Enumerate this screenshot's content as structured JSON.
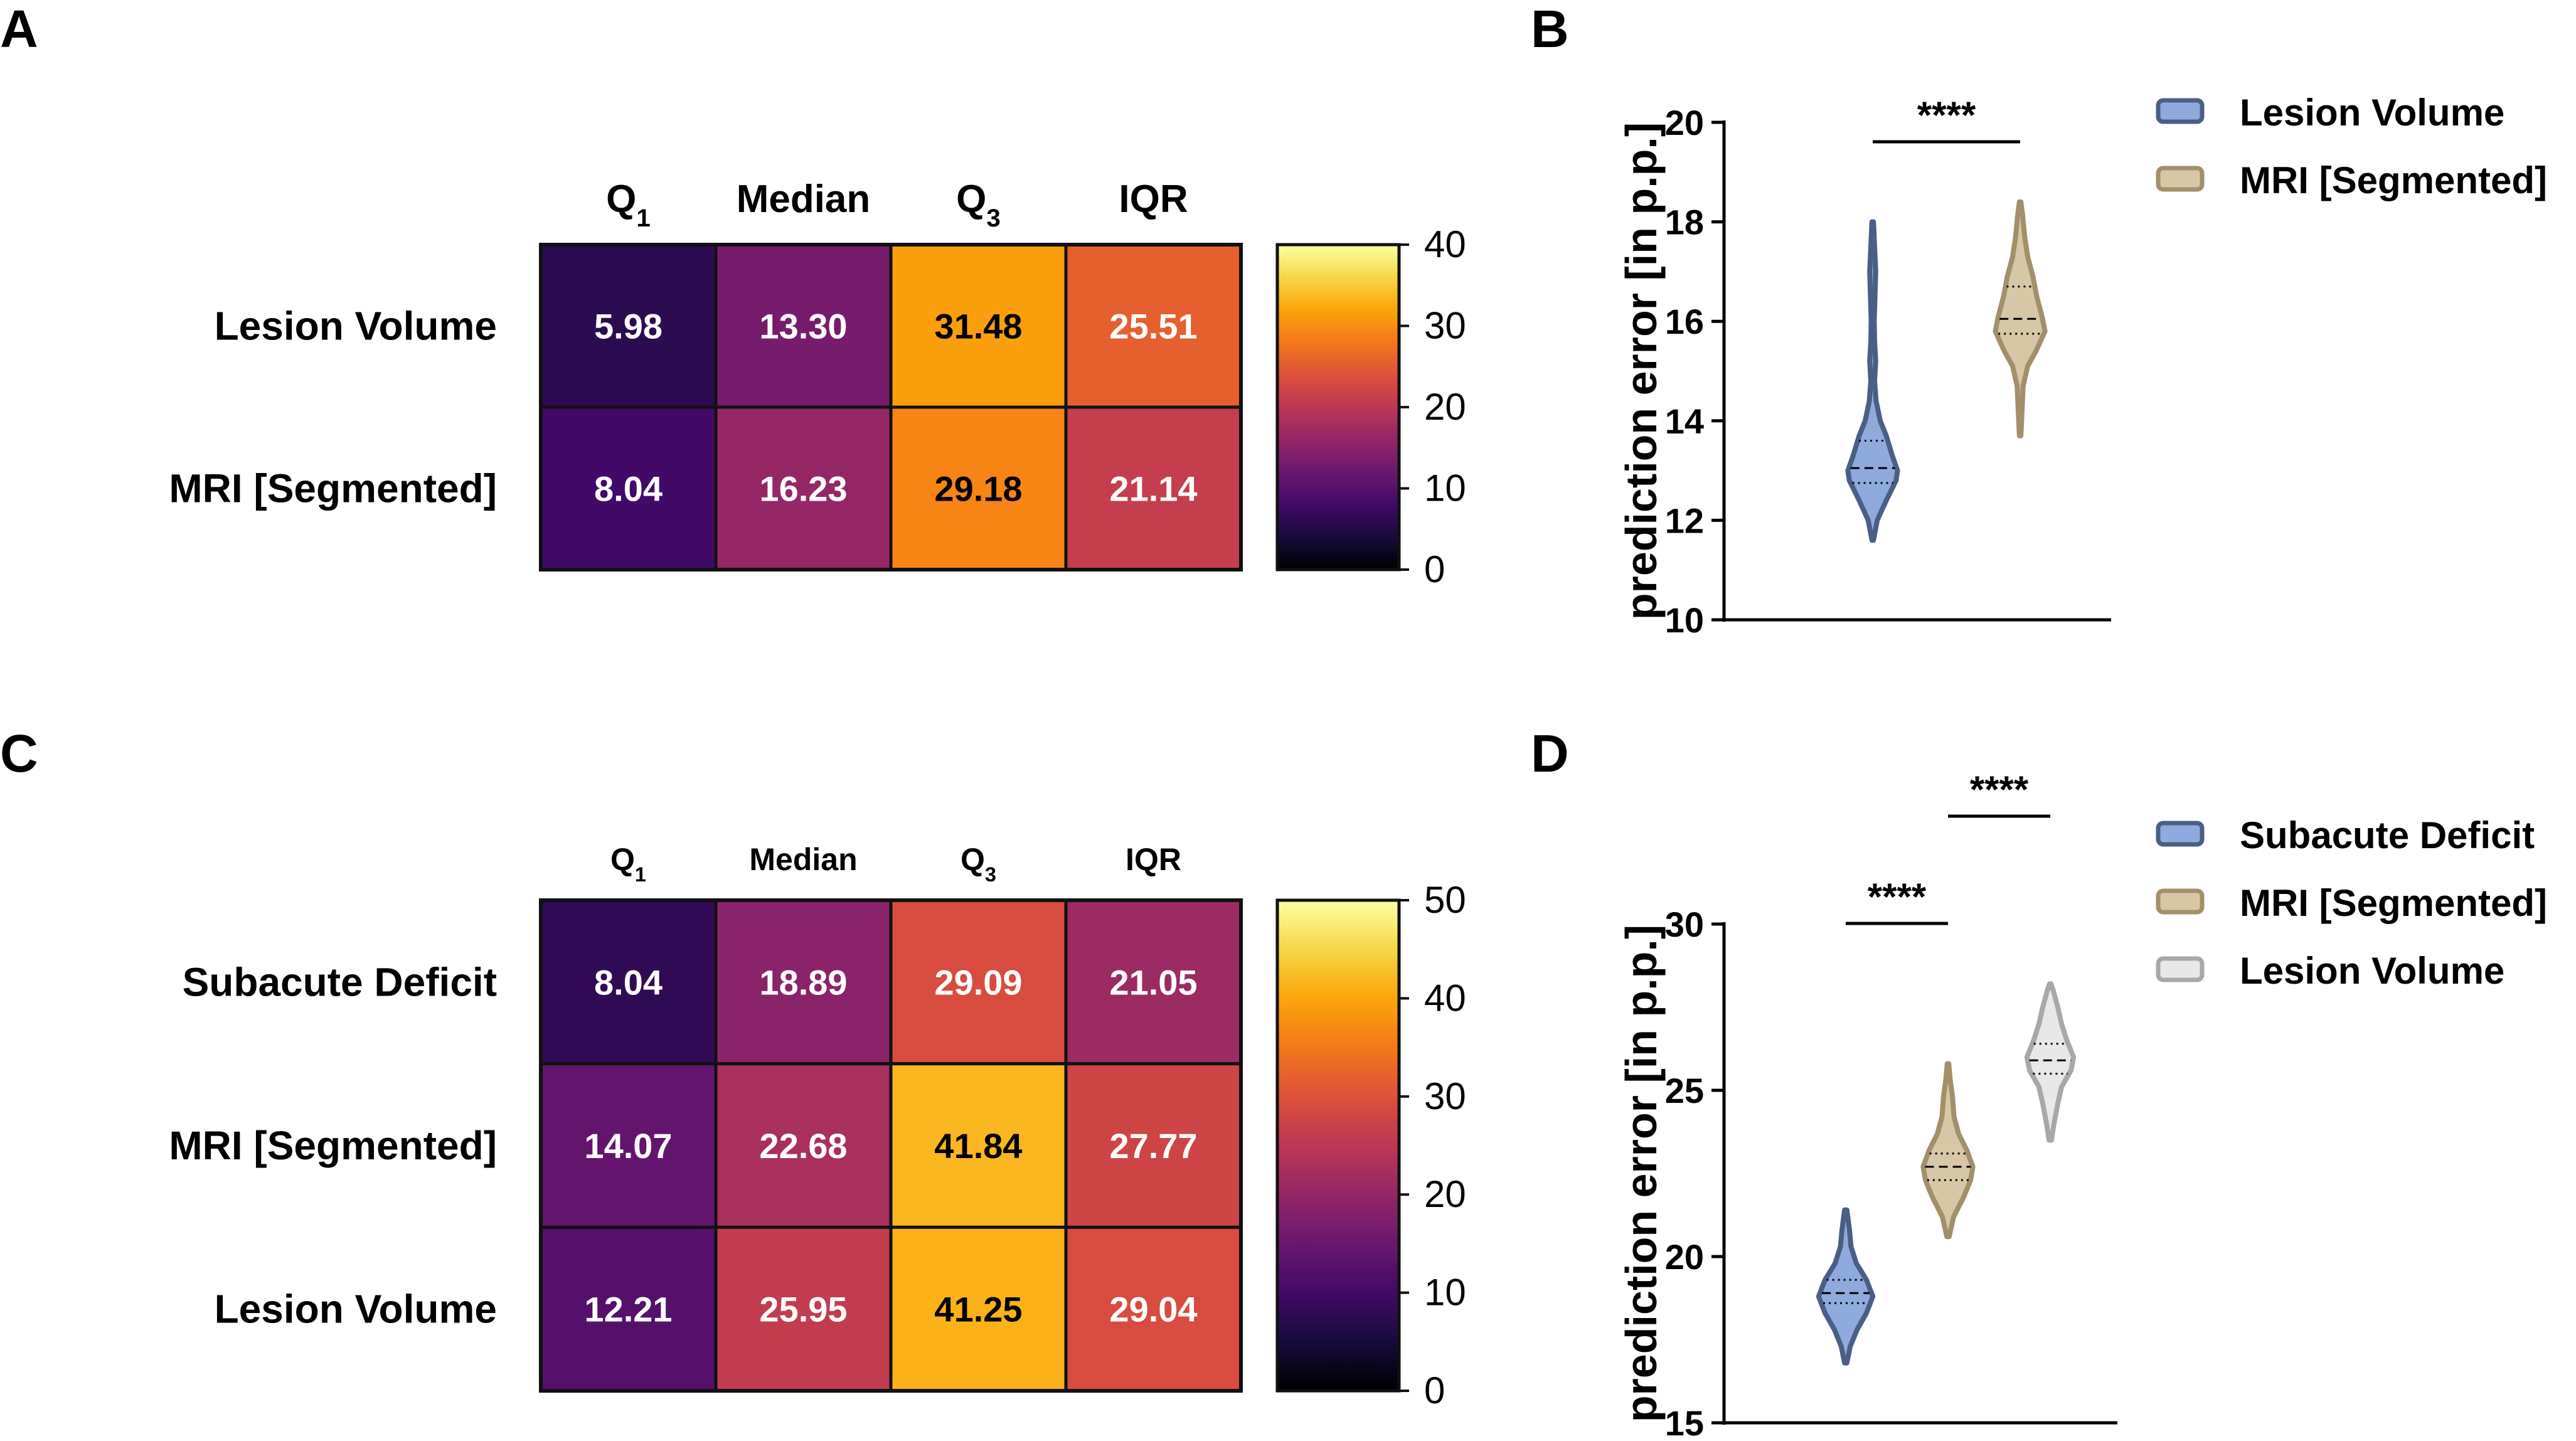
{
  "panels": {
    "A": "A",
    "B": "B",
    "C": "C",
    "D": "D"
  },
  "chart_data": [
    {
      "type": "heatmap",
      "panel": "A",
      "columns": [
        "Q1",
        "Median",
        "Q3",
        "IQR"
      ],
      "rows": [
        "Lesion Volume",
        "MRI [Segmented]"
      ],
      "values": [
        [
          5.98,
          13.3,
          31.48,
          25.51
        ],
        [
          8.04,
          16.23,
          29.18,
          21.14
        ]
      ],
      "value_labels": [
        [
          "5.98",
          "13.30",
          "31.48",
          "25.51"
        ],
        [
          "8.04",
          "16.23",
          "29.18",
          "21.14"
        ]
      ],
      "colorbar": {
        "range": [
          0,
          40
        ],
        "ticks": [
          "0",
          "10",
          "20",
          "30",
          "40"
        ],
        "colormap": "inferno"
      }
    },
    {
      "type": "violin",
      "panel": "B",
      "ylabel": "prediction error [in p.p.]",
      "ylim": [
        10,
        20
      ],
      "yticks": [
        "10",
        "12",
        "14",
        "16",
        "18",
        "20"
      ],
      "legend_position": "top-right",
      "series": [
        {
          "name": "Lesion Volume",
          "color": "#8faadc",
          "edge": "#4a5f86",
          "min": 11.6,
          "max": 18.0,
          "q1": 12.75,
          "median": 13.05,
          "q3": 13.6,
          "profile": [
            [
              11.6,
              0.02
            ],
            [
              12.0,
              0.12
            ],
            [
              12.4,
              0.36
            ],
            [
              12.8,
              0.62
            ],
            [
              13.0,
              0.66
            ],
            [
              13.3,
              0.52
            ],
            [
              13.7,
              0.36
            ],
            [
              14.0,
              0.2
            ],
            [
              14.4,
              0.09
            ],
            [
              14.8,
              0.05
            ],
            [
              15.2,
              0.08
            ],
            [
              15.6,
              0.05
            ],
            [
              16.0,
              0.04
            ],
            [
              16.5,
              0.06
            ],
            [
              17.0,
              0.08
            ],
            [
              17.5,
              0.05
            ],
            [
              18.0,
              0.02
            ]
          ]
        },
        {
          "name": "MRI [Segmented]",
          "color": "#d8c7a6",
          "edge": "#a38f6a",
          "min": 13.7,
          "max": 18.4,
          "q1": 15.75,
          "median": 16.05,
          "q3": 16.7,
          "profile": [
            [
              13.7,
              0.02
            ],
            [
              14.2,
              0.05
            ],
            [
              14.7,
              0.08
            ],
            [
              15.1,
              0.2
            ],
            [
              15.4,
              0.42
            ],
            [
              15.8,
              0.66
            ],
            [
              16.1,
              0.58
            ],
            [
              16.5,
              0.44
            ],
            [
              16.9,
              0.34
            ],
            [
              17.3,
              0.2
            ],
            [
              17.7,
              0.12
            ],
            [
              18.1,
              0.07
            ],
            [
              18.4,
              0.02
            ]
          ]
        }
      ],
      "significance": [
        {
          "pair": [
            0,
            1
          ],
          "label": "****"
        }
      ]
    },
    {
      "type": "heatmap",
      "panel": "C",
      "columns": [
        "Q1",
        "Median",
        "Q3",
        "IQR"
      ],
      "rows": [
        "Subacute Deficit",
        "MRI [Segmented]",
        "Lesion Volume"
      ],
      "values": [
        [
          8.04,
          18.89,
          29.09,
          21.05
        ],
        [
          14.07,
          22.68,
          41.84,
          27.77
        ],
        [
          12.21,
          25.95,
          41.25,
          29.04
        ]
      ],
      "value_labels": [
        [
          "8.04",
          "18.89",
          "29.09",
          "21.05"
        ],
        [
          "14.07",
          "22.68",
          "41.84",
          "27.77"
        ],
        [
          "12.21",
          "25.95",
          "41.25",
          "29.04"
        ]
      ],
      "colorbar": {
        "range": [
          0,
          50
        ],
        "ticks": [
          "0",
          "10",
          "20",
          "30",
          "40",
          "50"
        ],
        "colormap": "inferno"
      }
    },
    {
      "type": "violin",
      "panel": "D",
      "ylabel": "prediction error [in p.p.]",
      "ylim": [
        15,
        30
      ],
      "yticks": [
        "15",
        "20",
        "25",
        "30"
      ],
      "legend_position": "top-right",
      "series": [
        {
          "name": "Subacute Deficit",
          "color": "#8faadc",
          "edge": "#4a5f86",
          "min": 16.8,
          "max": 21.4,
          "q1": 18.6,
          "median": 18.9,
          "q3": 19.3,
          "profile": [
            [
              16.8,
              0.03
            ],
            [
              17.3,
              0.12
            ],
            [
              17.8,
              0.3
            ],
            [
              18.3,
              0.55
            ],
            [
              18.8,
              0.72
            ],
            [
              19.3,
              0.55
            ],
            [
              19.8,
              0.28
            ],
            [
              20.3,
              0.14
            ],
            [
              20.8,
              0.1
            ],
            [
              21.4,
              0.03
            ]
          ]
        },
        {
          "name": "MRI [Segmented]",
          "color": "#d8c7a6",
          "edge": "#a38f6a",
          "min": 20.6,
          "max": 25.8,
          "q1": 22.3,
          "median": 22.7,
          "q3": 23.1,
          "profile": [
            [
              20.6,
              0.03
            ],
            [
              21.2,
              0.15
            ],
            [
              21.8,
              0.42
            ],
            [
              22.3,
              0.6
            ],
            [
              22.7,
              0.66
            ],
            [
              23.2,
              0.5
            ],
            [
              23.7,
              0.28
            ],
            [
              24.2,
              0.16
            ],
            [
              24.8,
              0.12
            ],
            [
              25.3,
              0.06
            ],
            [
              25.8,
              0.02
            ]
          ]
        },
        {
          "name": "Lesion Volume",
          "color": "#e8e8e8",
          "edge": "#a8a8a8",
          "min": 23.5,
          "max": 28.2,
          "q1": 25.5,
          "median": 25.9,
          "q3": 26.4,
          "profile": [
            [
              23.5,
              0.03
            ],
            [
              24.0,
              0.1
            ],
            [
              24.6,
              0.2
            ],
            [
              25.1,
              0.3
            ],
            [
              25.6,
              0.55
            ],
            [
              26.0,
              0.62
            ],
            [
              26.5,
              0.44
            ],
            [
              27.0,
              0.3
            ],
            [
              27.5,
              0.2
            ],
            [
              28.0,
              0.08
            ],
            [
              28.2,
              0.02
            ]
          ]
        }
      ],
      "significance": [
        {
          "pair": [
            0,
            1
          ],
          "label": "****"
        },
        {
          "pair": [
            1,
            2
          ],
          "label": "****"
        }
      ]
    }
  ]
}
